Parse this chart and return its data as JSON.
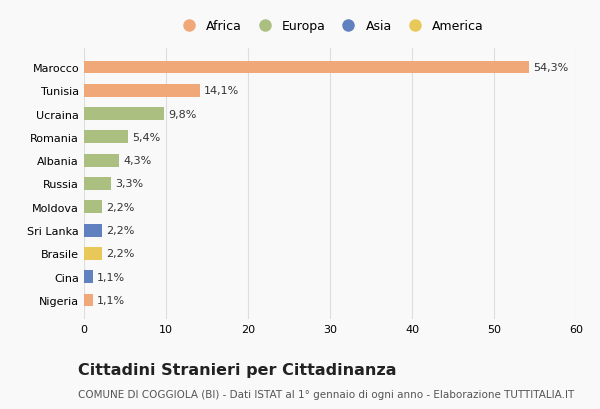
{
  "countries": [
    "Marocco",
    "Tunisia",
    "Ucraina",
    "Romania",
    "Albania",
    "Russia",
    "Moldova",
    "Sri Lanka",
    "Brasile",
    "Cina",
    "Nigeria"
  ],
  "values": [
    54.3,
    14.1,
    9.8,
    5.4,
    4.3,
    3.3,
    2.2,
    2.2,
    2.2,
    1.1,
    1.1
  ],
  "labels": [
    "54,3%",
    "14,1%",
    "9,8%",
    "5,4%",
    "4,3%",
    "3,3%",
    "2,2%",
    "2,2%",
    "2,2%",
    "1,1%",
    "1,1%"
  ],
  "continents": [
    "Africa",
    "Africa",
    "Europa",
    "Europa",
    "Europa",
    "Europa",
    "Europa",
    "Asia",
    "America",
    "Asia",
    "Africa"
  ],
  "colors": {
    "Africa": "#F0A878",
    "Europa": "#AABF80",
    "Asia": "#6080C0",
    "America": "#E8C858"
  },
  "legend_order": [
    "Africa",
    "Europa",
    "Asia",
    "America"
  ],
  "xlim": [
    0,
    60
  ],
  "xticks": [
    0,
    10,
    20,
    30,
    40,
    50,
    60
  ],
  "title": "Cittadini Stranieri per Cittadinanza",
  "subtitle": "COMUNE DI COGGIOLA (BI) - Dati ISTAT al 1° gennaio di ogni anno - Elaborazione TUTTITALIA.IT",
  "bg_color": "#f9f9f9",
  "bar_height": 0.55,
  "grid_color": "#dddddd",
  "title_fontsize": 11.5,
  "subtitle_fontsize": 7.5,
  "label_fontsize": 8,
  "tick_fontsize": 8,
  "legend_fontsize": 9
}
